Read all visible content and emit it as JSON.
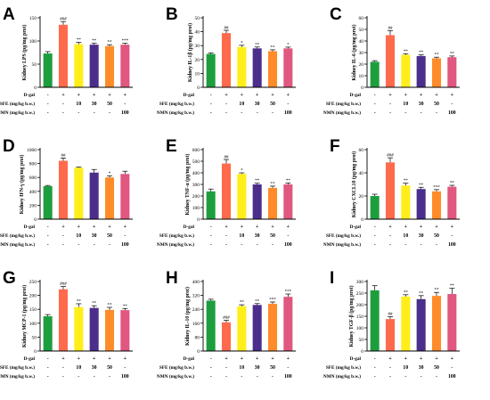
{
  "chart_data": [
    {
      "type": "bar",
      "panel": "A",
      "ylabel": "Kidney LPS (pg/mg prot)",
      "ylim": [
        0,
        150
      ],
      "yticks": [
        0,
        50,
        100,
        150
      ],
      "values": [
        73,
        135,
        93,
        92,
        89,
        92
      ],
      "errors": [
        4,
        7,
        4,
        3,
        3,
        3
      ],
      "signif": [
        "",
        "###",
        "**",
        "**",
        "**",
        "***"
      ]
    },
    {
      "type": "bar",
      "panel": "B",
      "ylabel": "Kidney IL-1β (pg/mg prot)",
      "ylim": [
        0,
        50
      ],
      "yticks": [
        0,
        10,
        20,
        30,
        40,
        50
      ],
      "values": [
        24,
        39,
        29,
        28,
        26,
        28
      ],
      "errors": [
        0.8,
        2,
        1.2,
        1,
        1,
        0.9
      ],
      "signif": [
        "",
        "##",
        "*",
        "**",
        "**",
        "*"
      ]
    },
    {
      "type": "bar",
      "panel": "C",
      "ylabel": "Kidney IL-6 (pg/mg prot)",
      "ylim": [
        0,
        60
      ],
      "yticks": [
        0,
        10,
        20,
        30,
        40,
        50,
        60
      ],
      "values": [
        22,
        45,
        28,
        27,
        25,
        26
      ],
      "errors": [
        1,
        4,
        1,
        1,
        1,
        1
      ],
      "signif": [
        "",
        "##",
        "**",
        "**",
        "**",
        "**"
      ]
    },
    {
      "type": "bar",
      "panel": "D",
      "ylabel": "Kidney IFN-γ (pg/mg prot)",
      "ylim": [
        0,
        1000
      ],
      "yticks": [
        0,
        200,
        400,
        600,
        800,
        1000
      ],
      "values": [
        475,
        840,
        740,
        670,
        600,
        650
      ],
      "errors": [
        10,
        40,
        10,
        45,
        25,
        40
      ],
      "signif": [
        "",
        "##",
        "",
        "",
        "*",
        ""
      ]
    },
    {
      "type": "bar",
      "panel": "E",
      "ylabel": "Kidney TNF-α (pg/mg prot)",
      "ylim": [
        0,
        600
      ],
      "yticks": [
        0,
        100,
        200,
        300,
        400,
        500,
        600
      ],
      "values": [
        240,
        480,
        390,
        300,
        270,
        300
      ],
      "errors": [
        20,
        35,
        10,
        10,
        15,
        12
      ],
      "signif": [
        "",
        "##",
        "*",
        "**",
        "**",
        "**"
      ]
    },
    {
      "type": "bar",
      "panel": "F",
      "ylabel": "Kidney CXCL10 (pg/mg prot)",
      "ylim": [
        0,
        60
      ],
      "yticks": [
        0,
        20,
        40,
        60
      ],
      "values": [
        20,
        49,
        29,
        26,
        24,
        28
      ],
      "errors": [
        1.5,
        4,
        2,
        1.5,
        1.5,
        1.2
      ],
      "signif": [
        "",
        "###",
        "**",
        "**",
        "***",
        "**"
      ]
    },
    {
      "type": "bar",
      "panel": "G",
      "ylabel": "Kidney MCP-1 (pg/mg prot)",
      "ylim": [
        0,
        250
      ],
      "yticks": [
        0,
        50,
        100,
        150,
        200,
        250
      ],
      "values": [
        125,
        222,
        158,
        155,
        148,
        147
      ],
      "errors": [
        6,
        10,
        12,
        8,
        9,
        6
      ],
      "signif": [
        "",
        "###",
        "**",
        "**",
        "**",
        "**"
      ]
    },
    {
      "type": "bar",
      "panel": "H",
      "ylabel": "Kidney IL-10 (pg/mg prot)",
      "ylim": [
        0,
        400
      ],
      "yticks": [
        0,
        80,
        160,
        240,
        320,
        400
      ],
      "values": [
        290,
        165,
        258,
        265,
        272,
        312
      ],
      "errors": [
        8,
        12,
        8,
        8,
        10,
        16
      ],
      "signif": [
        "",
        "###",
        "**",
        "**",
        "***",
        "***"
      ]
    },
    {
      "type": "bar",
      "panel": "I",
      "ylabel": "Kidney TGF-β (pg/mg prot)",
      "ylim": [
        0,
        300
      ],
      "yticks": [
        0,
        50,
        100,
        150,
        200,
        250,
        300
      ],
      "values": [
        262,
        138,
        235,
        224,
        238,
        246
      ],
      "errors": [
        20,
        10,
        8,
        15,
        15,
        25
      ],
      "signif": [
        "",
        "##",
        "**",
        "**",
        "**",
        "**"
      ]
    }
  ],
  "bar_colors": [
    "#1d9e3e",
    "#ff6a4d",
    "#ffee1a",
    "#4b2d8c",
    "#ff8c2a",
    "#e0577f"
  ],
  "groups": {
    "rows": [
      {
        "label": "D-gal",
        "cells": [
          "-",
          "+",
          "+",
          "+",
          "+",
          "+"
        ]
      },
      {
        "label": "SFE (mg/kg b.w.)",
        "cells": [
          "-",
          "-",
          "10",
          "30",
          "50",
          "-"
        ]
      },
      {
        "label": "NMN (mg/kg b.w.)",
        "cells": [
          "-",
          "-",
          "-",
          "-",
          "-",
          "100"
        ]
      }
    ]
  }
}
